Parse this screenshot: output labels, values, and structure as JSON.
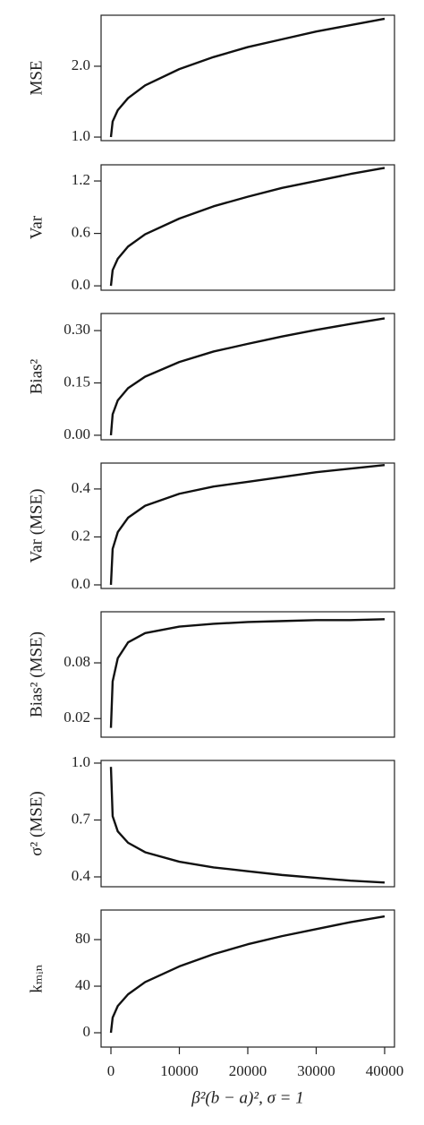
{
  "chart_data": [
    {
      "type": "line",
      "ylabel": "MSE",
      "x": [
        0,
        250,
        1000,
        2500,
        5000,
        10000,
        15000,
        20000,
        25000,
        30000,
        35000,
        40000
      ],
      "values": [
        1.0,
        1.22,
        1.38,
        1.55,
        1.73,
        1.96,
        2.13,
        2.27,
        2.38,
        2.49,
        2.58,
        2.67
      ],
      "xlim": [
        -1440,
        41440
      ],
      "ylim": [
        0.95,
        2.72
      ],
      "yticks": [
        {
          "value": 1,
          "label": "1.0"
        },
        {
          "value": 2,
          "label": "2.0"
        }
      ],
      "color": "#111111"
    },
    {
      "type": "line",
      "ylabel": "Var",
      "x": [
        0,
        250,
        1000,
        2500,
        5000,
        10000,
        15000,
        20000,
        25000,
        30000,
        35000,
        40000
      ],
      "values": [
        0,
        0.18,
        0.31,
        0.45,
        0.59,
        0.77,
        0.91,
        1.02,
        1.12,
        1.2,
        1.28,
        1.35
      ],
      "xlim": [
        -1440,
        41440
      ],
      "ylim": [
        -0.05,
        1.385
      ],
      "yticks": [
        {
          "value": 0,
          "label": "0.0"
        },
        0.6,
        1.2
      ],
      "color": "#111111"
    },
    {
      "type": "line",
      "ylabel": "Bias²",
      "x": [
        0,
        250,
        1000,
        2500,
        5000,
        10000,
        15000,
        20000,
        25000,
        30000,
        35000,
        40000
      ],
      "values": [
        0,
        0.06,
        0.1,
        0.135,
        0.168,
        0.21,
        0.24,
        0.262,
        0.283,
        0.302,
        0.319,
        0.335
      ],
      "xlim": [
        -1440,
        41440
      ],
      "ylim": [
        -0.013,
        0.349
      ],
      "yticks": [
        {
          "value": 0,
          "label": "0.00"
        },
        0.15,
        {
          "value": 0.3,
          "label": "0.30"
        }
      ],
      "color": "#111111"
    },
    {
      "type": "line",
      "ylabel": "Var (MSE)",
      "x": [
        0,
        250,
        1000,
        2500,
        5000,
        10000,
        15000,
        20000,
        25000,
        30000,
        35000,
        40000
      ],
      "values": [
        0,
        0.15,
        0.22,
        0.28,
        0.33,
        0.38,
        0.41,
        0.43,
        0.45,
        0.47,
        0.485,
        0.5
      ],
      "xlim": [
        -1440,
        41440
      ],
      "ylim": [
        -0.015,
        0.508
      ],
      "yticks": [
        {
          "value": 0,
          "label": "0.0"
        },
        0.2,
        0.4
      ],
      "color": "#111111"
    },
    {
      "type": "line",
      "ylabel": "Bias² (MSE)",
      "x": [
        0,
        250,
        1000,
        2500,
        5000,
        10000,
        15000,
        20000,
        25000,
        30000,
        35000,
        40000
      ],
      "values": [
        0.01,
        0.06,
        0.085,
        0.102,
        0.112,
        0.119,
        0.122,
        0.124,
        0.125,
        0.126,
        0.126,
        0.127
      ],
      "xlim": [
        -1440,
        41440
      ],
      "ylim": [
        0,
        0.135
      ],
      "yticks": [
        0.02,
        0.08
      ],
      "color": "#111111"
    },
    {
      "type": "line",
      "ylabel": "σ² (MSE)",
      "x": [
        0,
        250,
        1000,
        2500,
        5000,
        10000,
        15000,
        20000,
        25000,
        30000,
        35000,
        40000
      ],
      "values": [
        0.98,
        0.72,
        0.64,
        0.58,
        0.53,
        0.48,
        0.45,
        0.43,
        0.41,
        0.395,
        0.38,
        0.37
      ],
      "xlim": [
        -1440,
        41440
      ],
      "ylim": [
        0.348,
        1.014
      ],
      "yticks": [
        0.4,
        0.7,
        {
          "value": 1,
          "label": "1.0"
        }
      ],
      "color": "#111111"
    },
    {
      "type": "line",
      "ylabel": "kₘᵢₙ",
      "xlabel": "β²(b − a)², σ = 1",
      "x": [
        0,
        250,
        1000,
        2500,
        5000,
        10000,
        15000,
        20000,
        25000,
        30000,
        35000,
        40000
      ],
      "values": [
        0,
        13,
        23,
        33,
        43.5,
        57,
        67.5,
        76,
        83,
        89,
        95,
        100
      ],
      "xlim": [
        -1440,
        41440
      ],
      "ylim": [
        -12.3,
        105.4
      ],
      "yticks": [
        0,
        40,
        80
      ],
      "xticks": [
        0,
        10000,
        20000,
        30000,
        40000
      ],
      "color": "#111111"
    }
  ]
}
